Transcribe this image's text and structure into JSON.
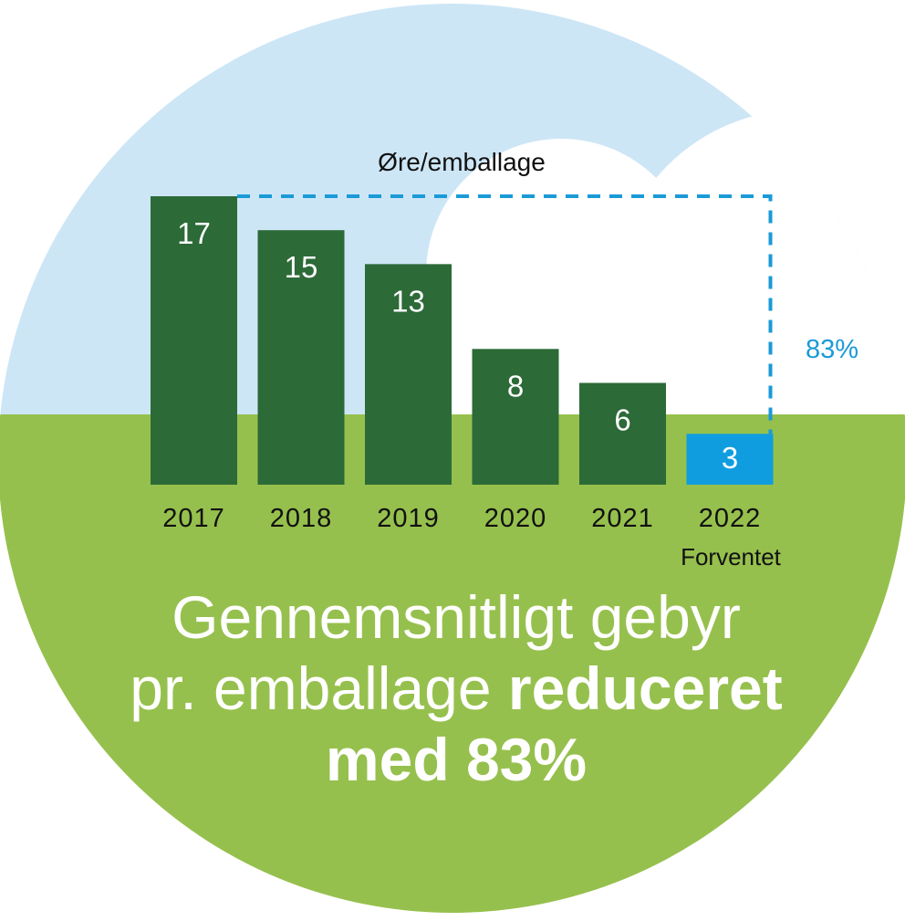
{
  "chart_data": {
    "type": "bar",
    "unit_label": "Øre/emballage",
    "categories": [
      "2017",
      "2018",
      "2019",
      "2020",
      "2021",
      "2022"
    ],
    "values": [
      17,
      15,
      13,
      8,
      6,
      3
    ],
    "value_labels": [
      "17",
      "15",
      "13",
      "8",
      "6",
      "3"
    ],
    "highlight_index": 5,
    "highlight_note": "Forventet",
    "reduction_label": "83%",
    "ylim": [
      0,
      17
    ],
    "grid": false
  },
  "headline": {
    "line1": "Gennemsnitligt gebyr",
    "line2_regular": "pr. emballage ",
    "line2_bold": "reduceret",
    "line3_bold": "med 83%"
  },
  "colors": {
    "sky": "#cde6f6",
    "cloud": "#ffffff",
    "ground": "#96c04d",
    "bar": "#2c6a37",
    "bar_highlight": "#109de0",
    "dashed_line": "#1a9ad7"
  }
}
